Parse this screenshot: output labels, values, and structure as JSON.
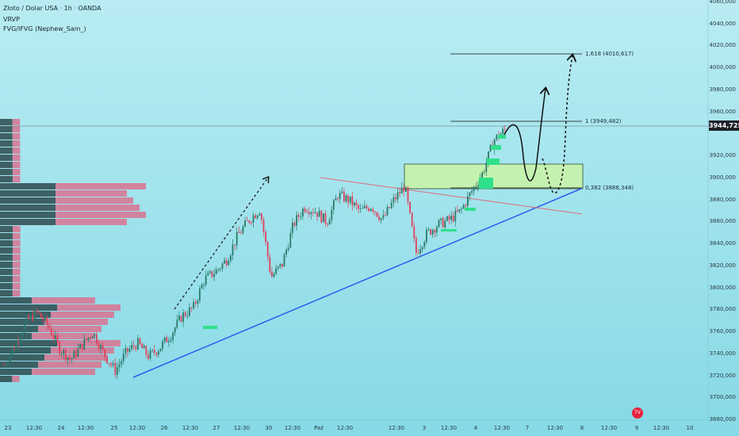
{
  "header": {
    "title": "Złoto / Dolar USA · 1h · OANDA",
    "indicator1": "VRVP",
    "indicator2": "FVG/IFVG (Nephew_Sam_)"
  },
  "price_axis": {
    "labels": [
      "4060,000",
      "4040,000",
      "4020,000",
      "4000,000",
      "3980,000",
      "3960,000",
      "3920,000",
      "3900,000",
      "3880,000",
      "3860,000",
      "3840,000",
      "3820,000",
      "3800,000",
      "3780,000",
      "3760,000",
      "3740,000",
      "3720,000",
      "3700,000",
      "3680,000"
    ],
    "current_price": "3944,725"
  },
  "time_axis": {
    "labels": [
      "23",
      "12:30",
      "24",
      "12:30",
      "25",
      "12:30",
      "26",
      "12:30",
      "27",
      "12:30",
      "30",
      "12:30",
      "Paź",
      "12:30",
      "12:30",
      "3",
      "12:30",
      "4",
      "12:30",
      "7",
      "12:30",
      "8",
      "12:30",
      "9",
      "12:30",
      "10"
    ]
  },
  "fibonacci": {
    "f1618": "1,618 (4010,617)",
    "f1": "1 (3949,482)",
    "f0382": "0,382 (3888,348)"
  },
  "logo_text": "TV",
  "colors": {
    "background": "#a9e6f0",
    "bull": "#2a7a68",
    "bear": "#e0405a",
    "trendline": "#2a5ef0",
    "resistance": "#e06a78",
    "zone": "#c9f2a8",
    "fvg": "#2fe08a",
    "vp_dark": "#2b4a4c",
    "vp_pink": "#d9738f"
  },
  "chart_data": {
    "type": "candlestick",
    "symbol": "Złoto / Dolar USA",
    "timeframe": "1h",
    "ylim": [
      3680,
      4060
    ],
    "close_path": [
      3730,
      3748,
      3770,
      3778,
      3765,
      3745,
      3735,
      3748,
      3760,
      3740,
      3725,
      3742,
      3750,
      3738,
      3746,
      3758,
      3775,
      3782,
      3808,
      3815,
      3826,
      3848,
      3862,
      3872,
      3810,
      3822,
      3858,
      3874,
      3870,
      3860,
      3885,
      3880,
      3870,
      3875,
      3862,
      3880,
      3893,
      3832,
      3850,
      3858,
      3862,
      3870,
      3888,
      3905,
      3935,
      3944
    ],
    "fibonacci_levels": [
      {
        "ratio": 1.618,
        "price": 4010.617
      },
      {
        "ratio": 1,
        "price": 3949.482
      },
      {
        "ratio": 0.382,
        "price": 3888.348
      }
    ],
    "current_price": 3944.725,
    "supply_demand_zone": {
      "low": 3888,
      "high": 3910
    }
  }
}
